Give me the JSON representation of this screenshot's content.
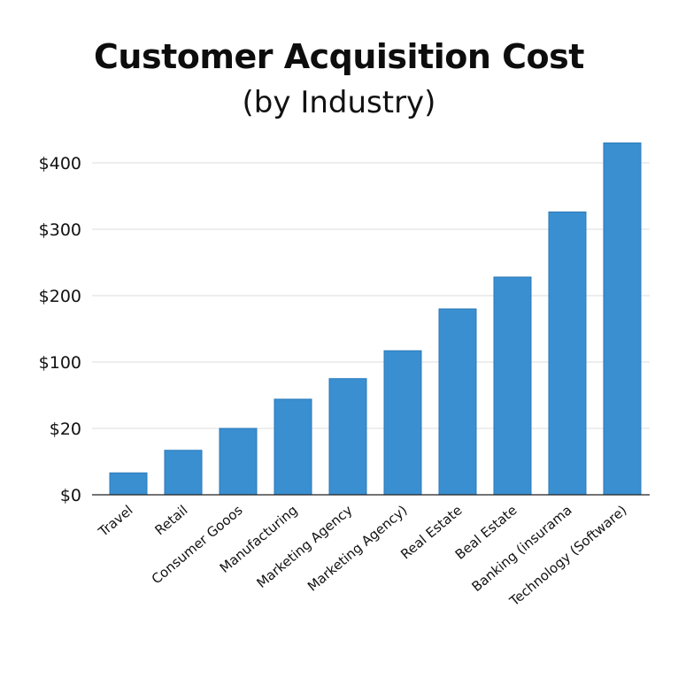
{
  "chart_data": {
    "type": "bar",
    "title": "Customer Acquisition Cost",
    "subtitle": "(by Industry)",
    "categories": [
      "Travel",
      "Retail",
      "Consumer Gooos",
      "Manufacturing",
      "Marketing Agency",
      "Marketing Agency)",
      "Real Estate",
      "Beal Estate",
      "Banking (insurama",
      "Technology (Software)"
    ],
    "values": [
      0.33,
      0.67,
      1.0,
      1.44,
      1.75,
      2.17,
      2.8,
      3.28,
      4.26,
      5.3
    ],
    "yticks": [
      {
        "label": "$0",
        "pos": 0
      },
      {
        "label": "$20",
        "pos": 1
      },
      {
        "label": "$100",
        "pos": 2
      },
      {
        "label": "$200",
        "pos": 3
      },
      {
        "label": "$300",
        "pos": 4
      },
      {
        "label": "$400",
        "pos": 5
      }
    ],
    "ylim": [
      0,
      5.3
    ],
    "grid": true,
    "bar_color": "#3a8fd0",
    "bar_edge_color": "#2a79b8"
  }
}
